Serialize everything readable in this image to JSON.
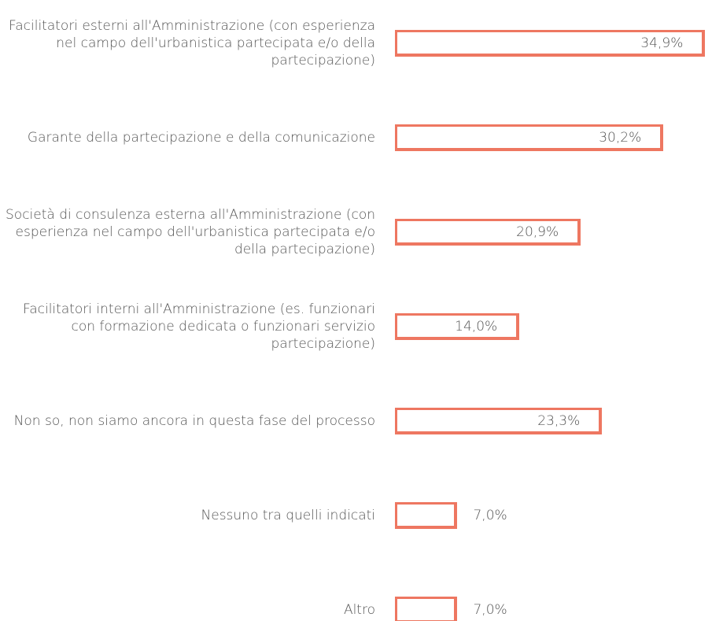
{
  "chart_data": {
    "type": "bar",
    "orientation": "horizontal",
    "color": "#ee7761",
    "categories": [
      "Facilitatori esterni all'Amministrazione (con esperienza nel campo dell'urbanistica partecipata e/o della partecipazione)",
      "Garante della partecipazione e della comunicazione",
      "Società di consulenza esterna all'Amministrazione (con esperienza nel campo dell'urbanistica partecipata e/o della partecipazione)",
      "Facilitatori interni all'Amministrazione (es. funzionari con formazione dedicata o funzionari servizio partecipazione)",
      "Non so, non siamo ancora in questa fase del processo",
      "Nessuno tra quelli indicati",
      "Altro"
    ],
    "values": [
      34.9,
      30.2,
      20.9,
      14.0,
      23.3,
      7.0,
      7.0
    ],
    "value_labels": [
      "34,9%",
      "30,2%",
      "20,9%",
      "14,0%",
      "23,3%",
      "7,0%",
      "7,0%"
    ]
  }
}
